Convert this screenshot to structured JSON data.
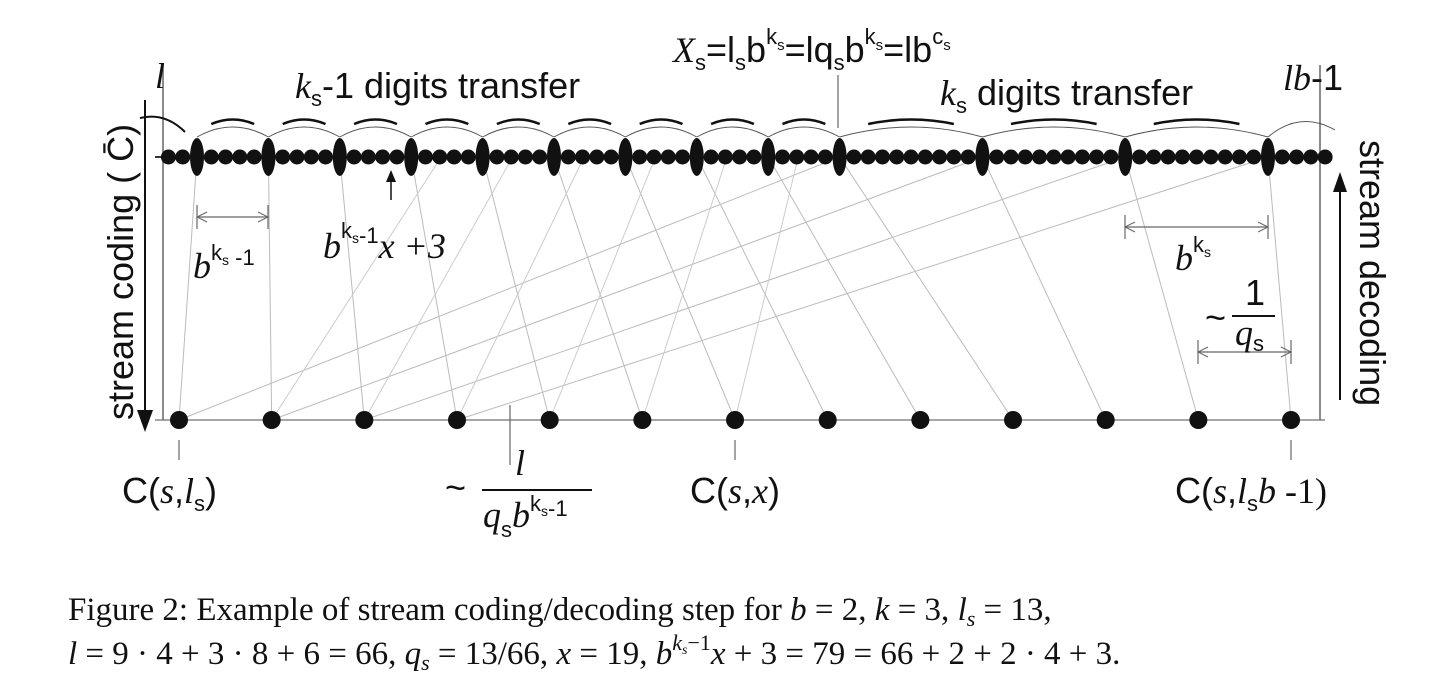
{
  "figure": {
    "top": {
      "l": "l",
      "left_transfer": [
        "k",
        "s",
        "-1 digits transfer"
      ],
      "xs": [
        "X",
        "s",
        "=l",
        "s",
        "b",
        "k",
        "s",
        "=lq",
        "s",
        "b",
        "k",
        "s",
        "=lb",
        "c",
        "s"
      ],
      "right_transfer": [
        "k",
        "s",
        " digits transfer"
      ],
      "lb": [
        "lb",
        "-1"
      ]
    },
    "side": {
      "coding": "stream coding ( C̄)",
      "decoding": "stream decoding"
    },
    "spans": {
      "left": [
        "b",
        "k",
        "s",
        " -1"
      ],
      "arrow_label": [
        "b",
        "k",
        "s",
        "-1",
        "x +3"
      ],
      "right": [
        "b",
        "k",
        "s"
      ],
      "inv_q": [
        "~",
        "1",
        "q",
        "s"
      ]
    },
    "bottom": {
      "left": [
        "C(",
        "s",
        ",",
        "l",
        "s",
        ")"
      ],
      "middle": [
        "~",
        "l",
        "q",
        "s",
        "b",
        "k",
        "s",
        "-1"
      ],
      "center": [
        "C(",
        "s",
        ",",
        "x",
        ")"
      ],
      "right": [
        "C(",
        "s",
        ",",
        "l",
        "s",
        "b",
        " -1)"
      ]
    }
  },
  "caption": {
    "line1": [
      "Figure 2:  Example of stream coding/decoding step for ",
      "b",
      " = 2,  ",
      "k",
      " = 3,  ",
      "l",
      "s",
      " = 13,"
    ],
    "line2": [
      "l",
      " = 9 · 4 + 3 · 8 + 6 = 66,  ",
      "q",
      "s",
      " = 13/66,  ",
      "x",
      " = 19,  ",
      "b",
      "k",
      "s",
      "−1",
      "x",
      " + 3 = 79 = 66 + 2 + 2 · 4 + 3."
    ]
  }
}
